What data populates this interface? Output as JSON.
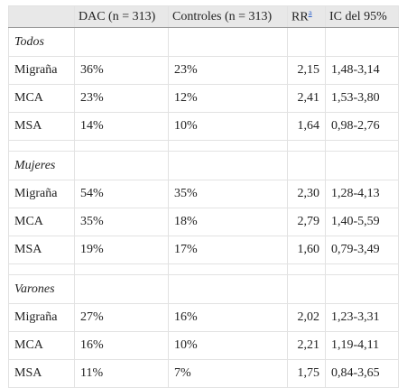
{
  "table": {
    "header": [
      "DAC (n = 313)",
      "Controles (n = 313)",
      "RR",
      "IC del 95%"
    ],
    "header_note": "a",
    "groups": [
      {
        "label": "Todos",
        "rows": [
          [
            "Migraña",
            "36%",
            "23%",
            "2,15",
            "1,48-3,14"
          ],
          [
            "MCA",
            "23%",
            "12%",
            "2,41",
            "1,53-3,80"
          ],
          [
            "MSA",
            "14%",
            "10%",
            "1,64",
            "0,98-2,76"
          ]
        ]
      },
      {
        "label": "Mujeres",
        "rows": [
          [
            "Migraña",
            "54%",
            "35%",
            "2,30",
            "1,28-4,13"
          ],
          [
            "MCA",
            "35%",
            "18%",
            "2,79",
            "1,40-5,59"
          ],
          [
            "MSA",
            "19%",
            "17%",
            "1,60",
            "0,79-3,49"
          ]
        ]
      },
      {
        "label": "Varones",
        "rows": [
          [
            "Migraña",
            "27%",
            "16%",
            "2,02",
            "1,23-3,31"
          ],
          [
            "MCA",
            "16%",
            "10%",
            "2,21",
            "1,19-4,11"
          ],
          [
            "MSA",
            "11%",
            "7%",
            "1,75",
            "0,84-3,65"
          ]
        ]
      }
    ]
  }
}
